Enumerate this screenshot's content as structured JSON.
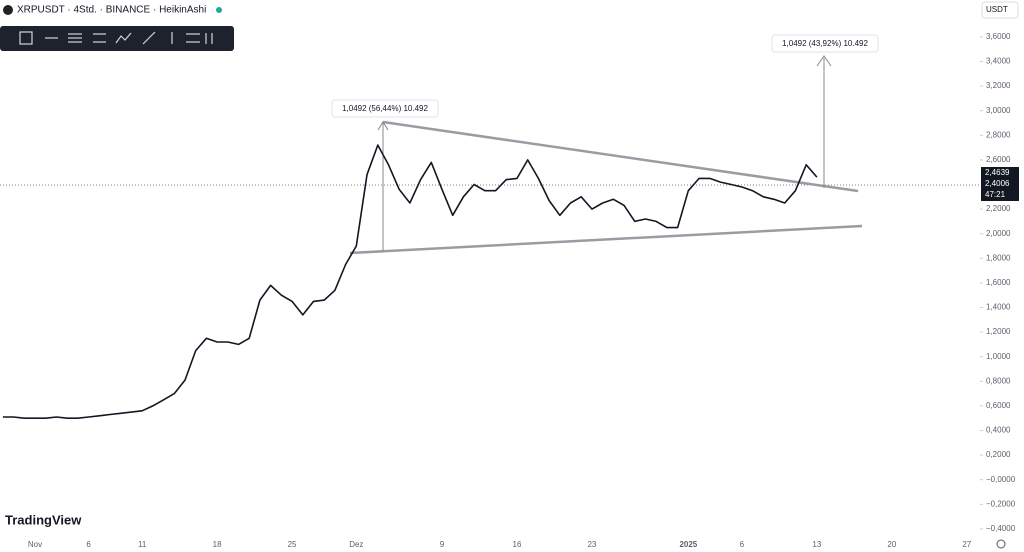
{
  "chart_data": {
    "type": "line",
    "title": "XRPUSDT · 4Std. · BINANCE · HeikinAshi",
    "currency": "USDT",
    "brand": "TradingView",
    "annotations": [
      "1,0492 (56,44%) 10.492",
      "1,0492 (43,92%) 10.492"
    ],
    "price_labels": [
      "2,4639",
      "2,4006",
      "47:21"
    ],
    "categories": [
      null,
      null,
      null,
      "Nov",
      null,
      null,
      null,
      null,
      "6",
      null,
      null,
      null,
      null,
      "11",
      null,
      null,
      null,
      null,
      null,
      null,
      "18",
      null,
      null,
      null,
      null,
      null,
      null,
      "25",
      null,
      null,
      null,
      null,
      null,
      "Dez",
      null,
      null,
      null,
      null,
      null,
      null,
      null,
      "9",
      null,
      null,
      null,
      null,
      null,
      null,
      "16",
      null,
      null,
      null,
      null,
      null,
      null,
      "23",
      null,
      null,
      null,
      null,
      null,
      null,
      null,
      null,
      "2025",
      null,
      null,
      null,
      null,
      "6",
      null,
      null,
      null,
      null,
      null,
      null,
      "13",
      null,
      null,
      null,
      null,
      null,
      null,
      "20",
      null,
      null,
      null,
      null,
      null,
      null,
      "27",
      null,
      null
    ],
    "series": [
      {
        "name": "XRPUSDT",
        "color": "#131722",
        "values": [
          0.51,
          0.51,
          0.5,
          0.5,
          0.5,
          0.51,
          0.5,
          0.5,
          0.51,
          0.52,
          0.53,
          0.54,
          0.55,
          0.56,
          0.6,
          0.65,
          0.7,
          0.81,
          1.05,
          1.15,
          1.12,
          1.12,
          1.1,
          1.15,
          1.46,
          1.58,
          1.5,
          1.45,
          1.34,
          1.45,
          1.46,
          1.54,
          1.75,
          1.9,
          2.48,
          2.72,
          2.56,
          2.36,
          2.25,
          2.44,
          2.58,
          2.36,
          2.15,
          2.3,
          2.4,
          2.35,
          2.35,
          2.44,
          2.45,
          2.6,
          2.45,
          2.27,
          2.15,
          2.25,
          2.3,
          2.2,
          2.25,
          2.28,
          2.23,
          2.1,
          2.12,
          2.1,
          2.05,
          2.05,
          2.35,
          2.45,
          2.45,
          2.42,
          2.4,
          2.38,
          2.35,
          2.3,
          2.28,
          2.25,
          2.35,
          2.56,
          2.46,
          null,
          null,
          null,
          null,
          null,
          null,
          null,
          null,
          null,
          null,
          null,
          null,
          null,
          null,
          null,
          null
        ]
      }
    ],
    "ylim": [
      -0.49,
      3.9
    ],
    "yticks": [
      {
        "value": 3.6,
        "label": "3,6000"
      },
      {
        "value": 3.4,
        "label": "3,4000"
      },
      {
        "value": 3.2,
        "label": "3,2000"
      },
      {
        "value": 3.0,
        "label": "3,0000"
      },
      {
        "value": 2.8,
        "label": "2,8000"
      },
      {
        "value": 2.6,
        "label": "2,6000"
      },
      {
        "value": 2.2,
        "label": "2,2000"
      },
      {
        "value": 2.0,
        "label": "2,0000"
      },
      {
        "value": 1.8,
        "label": "1,8000"
      },
      {
        "value": 1.6,
        "label": "1,6000"
      },
      {
        "value": 1.4,
        "label": "1,4000"
      },
      {
        "value": 1.2,
        "label": "1,2000"
      },
      {
        "value": 1.0,
        "label": "1,0000"
      },
      {
        "value": 0.8,
        "label": "0,8000"
      },
      {
        "value": 0.6,
        "label": "0,6000"
      },
      {
        "value": 0.4,
        "label": "0,4000"
      },
      {
        "value": 0.2,
        "label": "0,2000"
      },
      {
        "value": 0,
        "label": "−0,0000"
      },
      {
        "value": -0.2,
        "label": "−0,2000"
      },
      {
        "value": -0.4,
        "label": "−0,4000"
      }
    ],
    "grid": false
  }
}
